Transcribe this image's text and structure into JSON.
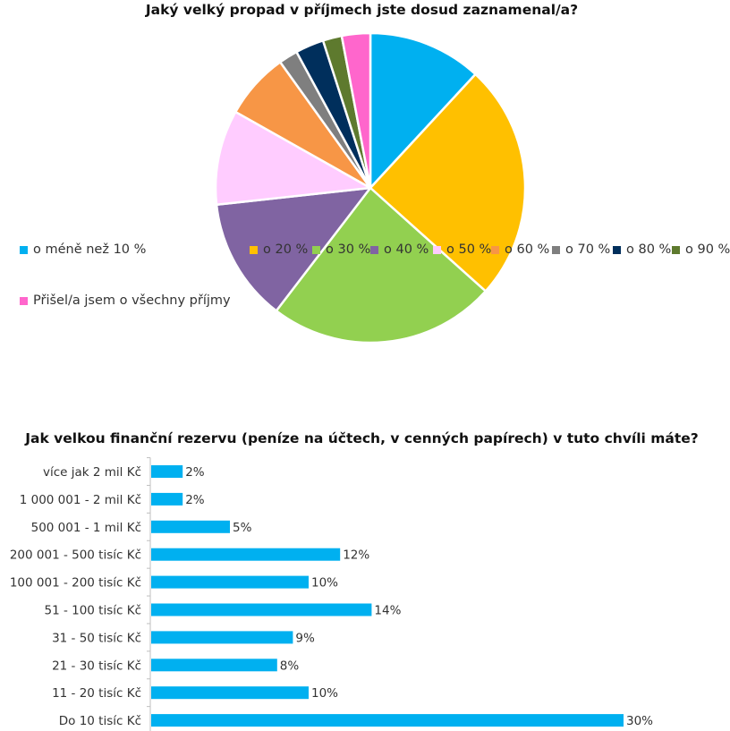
{
  "chart_data": [
    {
      "type": "pie",
      "title": "Jaký velký propad v příjmech jste dosud zaznamenal/a?",
      "legend_position": "left-and-right",
      "categories": [
        "o méně než 10 %",
        "o 20 %",
        "o 30 %",
        "o 40 %",
        "o 50 %",
        "o 60 %",
        "o 70 %",
        "o 80 %",
        "o 90 %",
        "Přišel/a jsem o všechny příjmy"
      ],
      "values": [
        12,
        25,
        24,
        13,
        10,
        7,
        2,
        3,
        2,
        3
      ],
      "colors": [
        "#00b0f0",
        "#ffc000",
        "#92d050",
        "#8064a2",
        "#ffccff",
        "#f79646",
        "#7f7f7f",
        "#002f5c",
        "#5e7a2e",
        "#ff66cc"
      ]
    },
    {
      "type": "bar",
      "orientation": "horizontal",
      "title": "Jak velkou finanční rezervu (peníze na účtech, v cenných papírech) v tuto chvíli máte?",
      "categories": [
        "více jak 2 mil Kč",
        "1 000 001 - 2 mil Kč",
        "500 001 - 1 mil Kč",
        "200 001 - 500 tisíc Kč",
        "100 001 - 200 tisíc Kč",
        "51 - 100 tisíc Kč",
        "31 - 50 tisíc Kč",
        "21 - 30 tisíc Kč",
        "11 - 20 tisíc Kč",
        "Do 10 tisíc Kč"
      ],
      "values": [
        2,
        2,
        5,
        12,
        10,
        14,
        9,
        8,
        10,
        30
      ],
      "data_labels": [
        "2%",
        "2%",
        "5%",
        "12%",
        "10%",
        "14%",
        "9%",
        "8%",
        "10%",
        "30%"
      ],
      "bar_color": "#00b0f0",
      "grid": false
    }
  ]
}
